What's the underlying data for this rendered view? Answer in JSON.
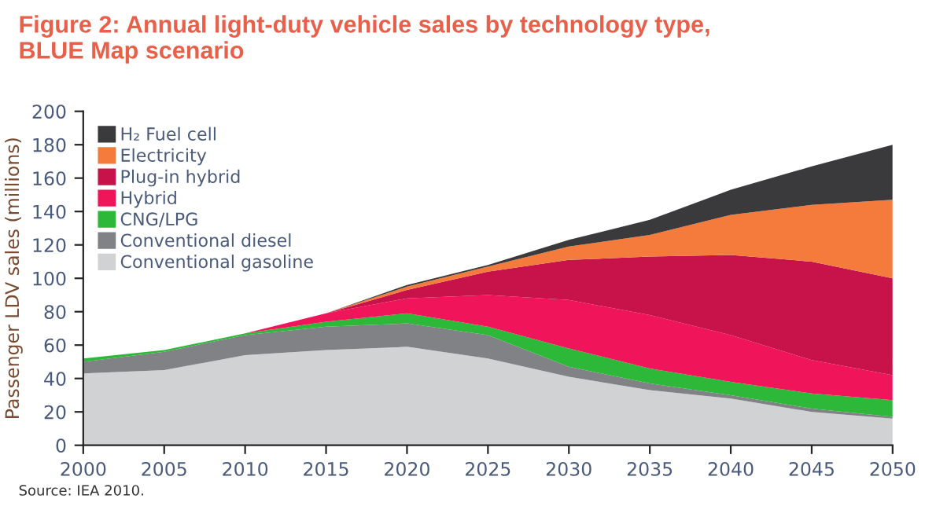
{
  "chart_data": {
    "type": "area",
    "stacked": true,
    "title": "Figure 2: Annual light-duty vehicle sales by technology type,\nBLUE Map scenario",
    "ylabel": "Passenger LDV sales (millions)",
    "x": [
      2000,
      2005,
      2010,
      2015,
      2020,
      2025,
      2030,
      2035,
      2040,
      2045,
      2050
    ],
    "series": [
      {
        "name": "Conventional gasoline",
        "color": "#d1d2d4",
        "values": [
          43,
          45,
          54,
          57,
          59,
          52,
          41,
          33,
          28,
          20,
          16
        ]
      },
      {
        "name": "Conventional diesel",
        "color": "#818285",
        "values": [
          7,
          11,
          12,
          14,
          14,
          14,
          6,
          4,
          2,
          2,
          1
        ]
      },
      {
        "name": "CNG/LPG",
        "color": "#2db839",
        "values": [
          2,
          1,
          1,
          3,
          6,
          5,
          11,
          9,
          8,
          9,
          10
        ]
      },
      {
        "name": "Hybrid",
        "color": "#f0145a",
        "values": [
          0,
          0,
          0,
          5,
          9,
          19,
          29,
          32,
          28,
          20,
          15
        ]
      },
      {
        "name": "Plug-in hybrid",
        "color": "#c8124a",
        "values": [
          0,
          0,
          0,
          0,
          5,
          14,
          24,
          35,
          48,
          59,
          58
        ]
      },
      {
        "name": "Electricity",
        "color": "#f47b3c",
        "values": [
          0,
          0,
          0,
          0,
          2,
          3,
          8,
          13,
          24,
          34,
          47
        ]
      },
      {
        "name": "H₂ Fuel cell",
        "color": "#3a3a3c",
        "values": [
          0,
          0,
          0,
          0,
          1,
          1,
          4,
          9,
          15,
          23,
          33
        ]
      }
    ],
    "xlim": [
      2000,
      2050
    ],
    "xticks": [
      2000,
      2005,
      2010,
      2015,
      2020,
      2025,
      2030,
      2035,
      2040,
      2045,
      2050
    ],
    "ylim": [
      0,
      200
    ],
    "yticks": [
      0,
      20,
      40,
      60,
      80,
      100,
      120,
      140,
      160,
      180,
      200
    ],
    "grid": false,
    "legend": "top left",
    "annotations": [
      "Source: IEA 2010."
    ]
  }
}
